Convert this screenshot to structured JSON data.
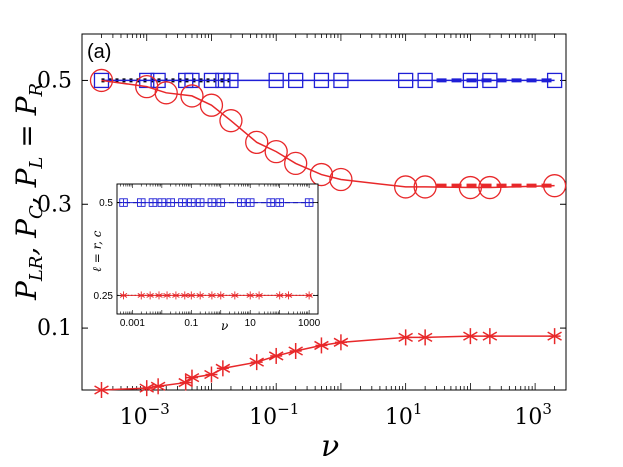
{
  "chart_data": {
    "type": "line",
    "panel_label": "(a)",
    "xlabel": "ν",
    "ylabel": "P_LR, P_C, P_L = P_R",
    "ylabel_parts": [
      "P",
      "LR",
      ", P",
      "C",
      ", P",
      "L",
      " = P",
      "R"
    ],
    "xscale": "log",
    "xlim": [
      0.0001,
      3000
    ],
    "ylim": [
      0.0,
      0.575
    ],
    "x_ticks": [
      {
        "value": 0.001,
        "base": "10",
        "exp": "−3"
      },
      {
        "value": 0.1,
        "base": "10",
        "exp": "−1"
      },
      {
        "value": 10,
        "base": "10",
        "exp": "1"
      },
      {
        "value": 1000,
        "base": "10",
        "exp": "3"
      }
    ],
    "y_ticks": [
      {
        "value": 0.1,
        "label": "0.1"
      },
      {
        "value": 0.3,
        "label": "0.3"
      },
      {
        "value": 0.5,
        "label": "0.5"
      }
    ],
    "series": [
      {
        "name": "P_LR",
        "color": "#1f1fd6",
        "marker": "square",
        "x": [
          0.0002,
          0.001,
          0.0015,
          0.004,
          0.005,
          0.01,
          0.015,
          0.02,
          0.1,
          0.2,
          0.5,
          1,
          10,
          20,
          100,
          200,
          2000
        ],
        "values": [
          0.5,
          0.5,
          0.5,
          0.5,
          0.5,
          0.5,
          0.5,
          0.5,
          0.5,
          0.5,
          0.5,
          0.5,
          0.5,
          0.5,
          0.5,
          0.5,
          0.5
        ]
      },
      {
        "name": "P_C",
        "color": "#e8282a",
        "marker": "circle",
        "x": [
          0.0002,
          0.001,
          0.002,
          0.005,
          0.01,
          0.02,
          0.05,
          0.1,
          0.2,
          0.5,
          1,
          10,
          20,
          100,
          200,
          2000
        ],
        "values": [
          0.5,
          0.49,
          0.48,
          0.475,
          0.46,
          0.435,
          0.4,
          0.385,
          0.366,
          0.348,
          0.34,
          0.328,
          0.328,
          0.327,
          0.327,
          0.33
        ]
      },
      {
        "name": "P_L = P_R",
        "color": "#e8282a",
        "marker": "asterisk",
        "x": [
          0.0002,
          0.001,
          0.0015,
          0.004,
          0.005,
          0.01,
          0.015,
          0.05,
          0.1,
          0.2,
          0.5,
          1,
          10,
          20,
          100,
          200,
          2000
        ],
        "values": [
          0.0,
          0.003,
          0.006,
          0.012,
          0.02,
          0.025,
          0.035,
          0.045,
          0.055,
          0.063,
          0.072,
          0.077,
          0.085,
          0.085,
          0.087,
          0.087,
          0.087
        ]
      }
    ],
    "reference_lines": [
      {
        "name": "0.5 (black dotted)",
        "value": 0.5,
        "color": "#000000",
        "x_range": [
          0.0002,
          0.02
        ]
      },
      {
        "name": "1/3 (red dashed)",
        "value": 0.33,
        "color": "#e8282a",
        "x_range": [
          30,
          2000
        ]
      },
      {
        "name": "0.5 (blue dashed)",
        "value": 0.5,
        "color": "#1f1fd6",
        "x_range": [
          30,
          2000
        ]
      }
    ],
    "inset": {
      "xscale": "log",
      "xlim": [
        0.0003,
        2000
      ],
      "ylim": [
        0.2,
        0.55
      ],
      "xlabel": "ν",
      "ylabel": "ℓ = r, c",
      "x_ticks": [
        {
          "value": 0.001,
          "label": "0.001"
        },
        {
          "value": 0.1,
          "label": "0.1"
        },
        {
          "value": 10,
          "label": "10"
        },
        {
          "value": 1000,
          "label": "1000"
        }
      ],
      "y_ticks": [
        {
          "value": 0.25,
          "label": "0.25"
        },
        {
          "value": 0.5,
          "label": "0.5"
        }
      ],
      "series": [
        {
          "name": "c",
          "color": "#1f1fd6",
          "marker": "square-plus",
          "x": [
            0.0005,
            0.002,
            0.005,
            0.01,
            0.02,
            0.05,
            0.1,
            0.2,
            0.5,
            1,
            5,
            10,
            50,
            100,
            1000
          ],
          "values": [
            0.5,
            0.5,
            0.5,
            0.5,
            0.5,
            0.5,
            0.5,
            0.5,
            0.5,
            0.5,
            0.5,
            0.5,
            0.5,
            0.5,
            0.5
          ]
        },
        {
          "name": "r",
          "color": "#e8282a",
          "marker": "asterisk",
          "x": [
            0.0005,
            0.002,
            0.004,
            0.008,
            0.015,
            0.03,
            0.06,
            0.1,
            0.2,
            0.5,
            1,
            3,
            10,
            20,
            100,
            200,
            1000
          ],
          "values": [
            0.25,
            0.25,
            0.25,
            0.25,
            0.25,
            0.25,
            0.25,
            0.25,
            0.25,
            0.25,
            0.25,
            0.25,
            0.25,
            0.25,
            0.25,
            0.25,
            0.25
          ]
        }
      ]
    }
  }
}
